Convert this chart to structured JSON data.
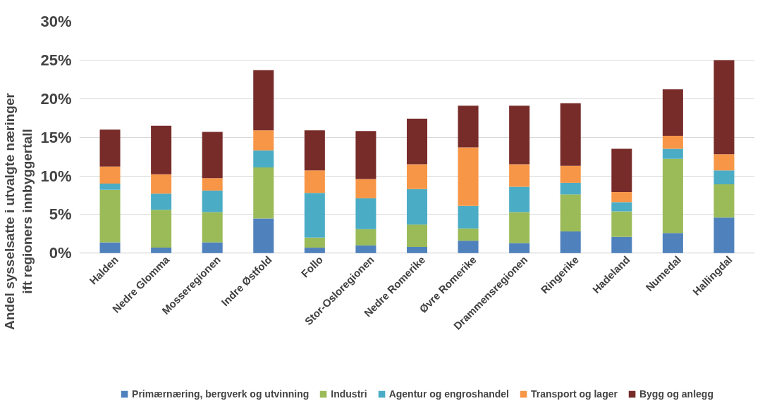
{
  "chart_data": {
    "type": "bar",
    "stacked": true,
    "ylabel": "Andel sysselsatte i utvalgte næringer\nift regioners innbyggertall",
    "categories": [
      "Halden",
      "Nedre Glomma",
      "Mosseregionen",
      "Indre Østfold",
      "Follo",
      "Stor-Osloregionen",
      "Nedre Romerike",
      "Øvre Romerike",
      "Drammensregionen",
      "Ringerike",
      "Hadeland",
      "Numedal",
      "Hallingdal"
    ],
    "series": [
      {
        "name": "Primærnæring, bergverk og utvinning",
        "color": "#4f81bd",
        "values": [
          1.4,
          0.7,
          1.4,
          4.5,
          0.7,
          1.0,
          0.8,
          1.6,
          1.3,
          2.8,
          2.1,
          2.6,
          4.6
        ]
      },
      {
        "name": "Industri",
        "color": "#9bbb59",
        "values": [
          6.8,
          4.9,
          3.9,
          6.6,
          1.3,
          2.1,
          2.9,
          1.6,
          4.0,
          4.8,
          3.3,
          9.6,
          4.3
        ]
      },
      {
        "name": "Agentur og engroshandel",
        "color": "#4bacc6",
        "values": [
          0.8,
          2.1,
          2.8,
          2.2,
          5.8,
          4.0,
          4.6,
          2.9,
          3.3,
          1.5,
          1.2,
          1.3,
          1.8
        ]
      },
      {
        "name": "Transport og lager",
        "color": "#f79646",
        "values": [
          2.2,
          2.5,
          1.6,
          2.6,
          2.9,
          2.5,
          3.2,
          7.6,
          2.9,
          2.2,
          1.3,
          1.7,
          2.1
        ]
      },
      {
        "name": "Bygg og anlegg",
        "color": "#772c2a",
        "values": [
          4.8,
          6.3,
          6.0,
          7.8,
          5.2,
          6.2,
          5.9,
          5.4,
          7.6,
          8.1,
          5.6,
          6.0,
          12.2
        ]
      }
    ],
    "ylim": [
      0,
      30
    ],
    "yticks": [
      {
        "value": 0,
        "label": "0%"
      },
      {
        "value": 5,
        "label": "5%"
      },
      {
        "value": 10,
        "label": "10%"
      },
      {
        "value": 15,
        "label": "15%"
      },
      {
        "value": 20,
        "label": "20%"
      },
      {
        "value": 25,
        "label": "25%"
      },
      {
        "value": 30,
        "label": "30%"
      }
    ],
    "grid": "y",
    "legend": "bottom"
  }
}
